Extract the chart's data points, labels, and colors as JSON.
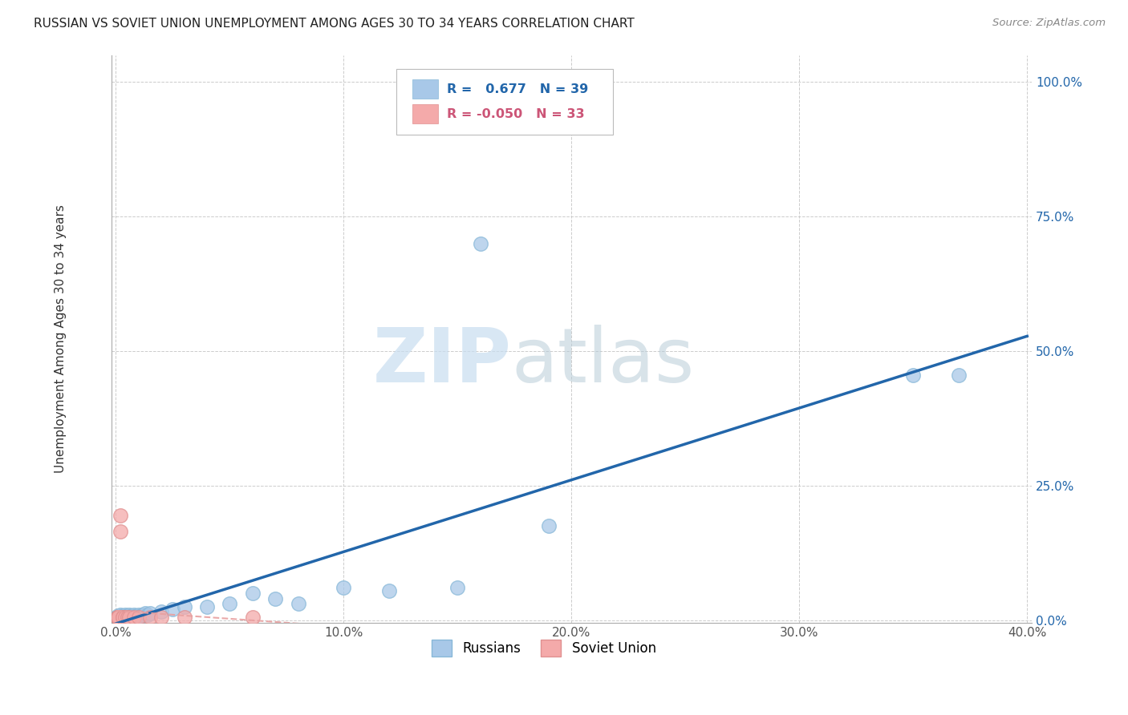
{
  "title": "RUSSIAN VS SOVIET UNION UNEMPLOYMENT AMONG AGES 30 TO 34 YEARS CORRELATION CHART",
  "source": "Source: ZipAtlas.com",
  "ylabel": "Unemployment Among Ages 30 to 34 years",
  "xlim": [
    -0.002,
    0.402
  ],
  "ylim": [
    -0.005,
    1.05
  ],
  "xticks": [
    0.0,
    0.1,
    0.2,
    0.3,
    0.4
  ],
  "yticks": [
    0.0,
    0.25,
    0.5,
    0.75,
    1.0
  ],
  "xticklabels": [
    "0.0%",
    "10.0%",
    "20.0%",
    "30.0%",
    "40.0%"
  ],
  "yticklabels": [
    "0.0%",
    "25.0%",
    "50.0%",
    "75.0%",
    "100.0%"
  ],
  "russian_R": 0.677,
  "russian_N": 39,
  "soviet_R": -0.05,
  "soviet_N": 33,
  "russian_color": "#a8c8e8",
  "soviet_color": "#f4aaaa",
  "russian_trendline_color": "#2266aa",
  "soviet_trendline_color": "#e8a0a0",
  "watermark_zip": "ZIP",
  "watermark_atlas": "atlas",
  "background_color": "#ffffff",
  "grid_color": "#cccccc",
  "russian_x": [
    0.001,
    0.001,
    0.002,
    0.002,
    0.003,
    0.003,
    0.004,
    0.004,
    0.005,
    0.005,
    0.006,
    0.006,
    0.007,
    0.007,
    0.008,
    0.008,
    0.009,
    0.01,
    0.01,
    0.011,
    0.012,
    0.013,
    0.014,
    0.015,
    0.02,
    0.025,
    0.03,
    0.04,
    0.05,
    0.06,
    0.07,
    0.08,
    0.1,
    0.12,
    0.15,
    0.16,
    0.19,
    0.35,
    0.37
  ],
  "russian_y": [
    0.005,
    0.008,
    0.005,
    0.01,
    0.005,
    0.008,
    0.005,
    0.01,
    0.005,
    0.008,
    0.005,
    0.01,
    0.005,
    0.008,
    0.005,
    0.01,
    0.008,
    0.005,
    0.01,
    0.008,
    0.01,
    0.012,
    0.01,
    0.012,
    0.015,
    0.02,
    0.025,
    0.025,
    0.03,
    0.05,
    0.04,
    0.03,
    0.06,
    0.055,
    0.06,
    0.7,
    0.175,
    0.455,
    0.455
  ],
  "soviet_x": [
    0.001,
    0.001,
    0.001,
    0.001,
    0.001,
    0.001,
    0.001,
    0.001,
    0.001,
    0.001,
    0.001,
    0.001,
    0.001,
    0.001,
    0.001,
    0.001,
    0.001,
    0.001,
    0.001,
    0.001,
    0.002,
    0.002,
    0.003,
    0.003,
    0.004,
    0.005,
    0.006,
    0.008,
    0.01,
    0.015,
    0.02,
    0.03,
    0.06
  ],
  "soviet_y": [
    0.005,
    0.005,
    0.005,
    0.005,
    0.005,
    0.005,
    0.005,
    0.005,
    0.005,
    0.005,
    0.005,
    0.005,
    0.005,
    0.005,
    0.005,
    0.005,
    0.005,
    0.005,
    0.005,
    0.005,
    0.165,
    0.195,
    0.005,
    0.005,
    0.005,
    0.005,
    0.005,
    0.005,
    0.005,
    0.005,
    0.005,
    0.005,
    0.005
  ]
}
